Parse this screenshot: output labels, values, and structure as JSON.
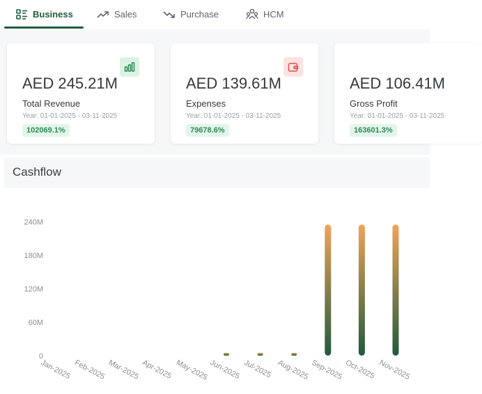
{
  "tabs": [
    {
      "label": "Business",
      "icon": "business-icon",
      "active": true
    },
    {
      "label": "Sales",
      "icon": "trend-up-icon",
      "active": false
    },
    {
      "label": "Purchase",
      "icon": "trend-down-icon",
      "active": false
    },
    {
      "label": "HCM",
      "icon": "people-icon",
      "active": false
    }
  ],
  "cards": [
    {
      "amount": "AED 245.21M",
      "metric": "Total Revenue",
      "period": "Year: 01-01-2025 - 03-11-2025",
      "change": "102069.1%",
      "icon": "bar-chart-icon",
      "icon_color": "#2e8a57",
      "icon_bg": "#dcf3e4"
    },
    {
      "amount": "AED 139.61M",
      "metric": "Expenses",
      "period": "Year: 01-01-2025 - 03-11-2025",
      "change": "79678.6%",
      "icon": "wallet-icon",
      "icon_color": "#d9534f",
      "icon_bg": "#fbe3e1"
    },
    {
      "amount": "AED 106.41M",
      "metric": "Gross Profit",
      "period": "Year: 01-01-2025 - 03-11-2025",
      "change": "163601.3%"
    }
  ],
  "cashflow": {
    "title": "Cashflow"
  },
  "chart_data": {
    "type": "bar",
    "title": "Cashflow",
    "categories": [
      "Jan-2025",
      "Feb-2025",
      "Mar-2025",
      "Apr-2025",
      "May-2025",
      "Jun-2025",
      "Jul-2025",
      "Aug-2025",
      "Sep-2025",
      "Oct-2025",
      "Nov-2025"
    ],
    "values": [
      0,
      0,
      0,
      0,
      0,
      0.8,
      0.8,
      0.8,
      235,
      235,
      235
    ],
    "y_ticks": [
      "0",
      "60M",
      "120M",
      "180M",
      "240M"
    ],
    "y_tick_values": [
      0,
      60,
      120,
      180,
      240
    ],
    "ylim": [
      0,
      240
    ],
    "unit": "M",
    "grid": false,
    "colors": {
      "bar_top": "#f0a35a",
      "bar_bottom": "#1f5b3c",
      "axis_text": "#8a8f94"
    }
  }
}
